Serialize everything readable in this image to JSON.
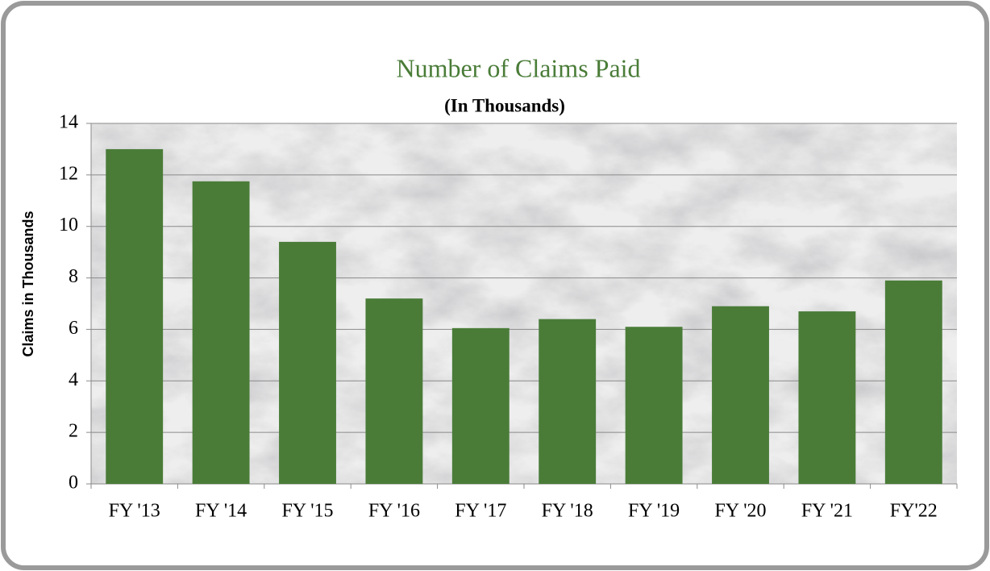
{
  "chart_data": {
    "type": "bar",
    "title": "Number of Claims Paid",
    "subtitle": "(In Thousands)",
    "y_label": "Claims in Thousands",
    "categories": [
      "FY '13",
      "FY '14",
      "FY '15",
      "FY '16",
      "FY '17",
      "FY '18",
      "FY '19",
      "FY '20",
      "FY '21",
      "FY'22"
    ],
    "values": [
      13.0,
      11.75,
      9.4,
      7.2,
      6.05,
      6.4,
      6.1,
      6.9,
      6.7,
      7.9
    ],
    "color": "#4a7c38",
    "ylim": [
      0,
      14
    ],
    "yticks": [
      0,
      2,
      4,
      6,
      8,
      10,
      12,
      14
    ],
    "grid": true
  }
}
